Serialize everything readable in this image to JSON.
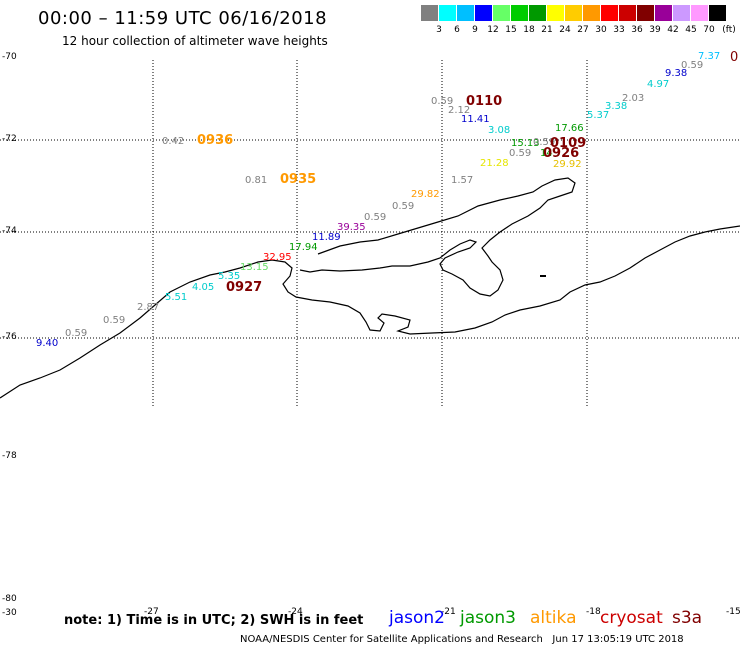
{
  "title": "00:00 – 11:59 UTC 06/16/2018",
  "subtitle": "12 hour collection of altimeter wave heights",
  "legend": {
    "unit": "(ft)",
    "colors": [
      "#808080",
      "#00ffff",
      "#00bfff",
      "#0000ff",
      "#66ff66",
      "#00cc00",
      "#009900",
      "#ffff00",
      "#ffcc00",
      "#ff9900",
      "#ff0000",
      "#cc0000",
      "#800000",
      "#990099",
      "#cc99ff",
      "#ff99ff",
      "#000000"
    ],
    "labels": [
      "3",
      "6",
      "9",
      "12",
      "15",
      "18",
      "21",
      "24",
      "27",
      "30",
      "33",
      "36",
      "39",
      "42",
      "45",
      "70"
    ]
  },
  "lat_labels": [
    "-70",
    "-72",
    "-74",
    "-76",
    "-78",
    "-80",
    "-30"
  ],
  "lon_labels": [
    "-27",
    "-24",
    "-21",
    "-18",
    "-15"
  ],
  "wave_labels": [
    {
      "text": "7.37",
      "color": "#00bfff"
    },
    {
      "text": "0",
      "color": "#800000"
    },
    {
      "text": "0.59",
      "color": "#808080"
    },
    {
      "text": "9.38",
      "color": "#0000cc"
    },
    {
      "text": "4.97",
      "color": "#00cccc"
    },
    {
      "text": "2.03",
      "color": "#808080"
    },
    {
      "text": "3.38",
      "color": "#00cccc"
    },
    {
      "text": "5.37",
      "color": "#00cccc"
    },
    {
      "text": "0.59",
      "color": "#808080"
    },
    {
      "text": "2.12",
      "color": "#808080"
    },
    {
      "text": "11.41",
      "color": "#0000cc"
    },
    {
      "text": "3.08",
      "color": "#00cccc"
    },
    {
      "text": "17.66",
      "color": "#009900"
    },
    {
      "text": "15.13",
      "color": "#009900"
    },
    {
      "text": "0.59",
      "color": "#808080"
    },
    {
      "text": "14",
      "color": "#009900"
    },
    {
      "text": "0.59",
      "color": "#808080"
    },
    {
      "text": "21.28",
      "color": "#e6e600"
    },
    {
      "text": "29.92",
      "color": "#e6c000"
    },
    {
      "text": "0.42",
      "color": "#808080"
    },
    {
      "text": "0.81",
      "color": "#808080"
    },
    {
      "text": "1.57",
      "color": "#808080"
    },
    {
      "text": "29.82",
      "color": "#ff9900"
    },
    {
      "text": "0.59",
      "color": "#808080"
    },
    {
      "text": "0.59",
      "color": "#808080"
    },
    {
      "text": "39.35",
      "color": "#990099"
    },
    {
      "text": "11.89",
      "color": "#0000cc"
    },
    {
      "text": "17.94",
      "color": "#009900"
    },
    {
      "text": "32.95",
      "color": "#ff0000"
    },
    {
      "text": "13.15",
      "color": "#66dd66"
    },
    {
      "text": "5.35",
      "color": "#00cccc"
    },
    {
      "text": "4.05",
      "color": "#00cccc"
    },
    {
      "text": "5.51",
      "color": "#00cccc"
    },
    {
      "text": "2.87",
      "color": "#808080"
    },
    {
      "text": "0.59",
      "color": "#808080"
    },
    {
      "text": "0.59",
      "color": "#808080"
    },
    {
      "text": "9.40",
      "color": "#0000cc"
    }
  ],
  "time_labels": [
    {
      "text": "0110",
      "color": "#800000"
    },
    {
      "text": "0109",
      "color": "#800000"
    },
    {
      "text": "0926",
      "color": "#800000"
    },
    {
      "text": "0936",
      "color": "#ff9900"
    },
    {
      "text": "0935",
      "color": "#ff9900"
    },
    {
      "text": "0927",
      "color": "#800000"
    }
  ],
  "note": "note: 1) Time is in UTC; 2) SWH is in feet",
  "satellites": [
    {
      "name": "jason2",
      "color": "#0000ff"
    },
    {
      "name": "jason3",
      "color": "#009900"
    },
    {
      "name": "altika",
      "color": "#ff9900"
    },
    {
      "name": "cryosat",
      "color": "#cc0000"
    },
    {
      "name": "s3a",
      "color": "#800000"
    }
  ],
  "credit": "NOAA/NESDIS Center for Satellite Applications and Research",
  "timestamp": "Jun 17 13:05:19 UTC 2018"
}
